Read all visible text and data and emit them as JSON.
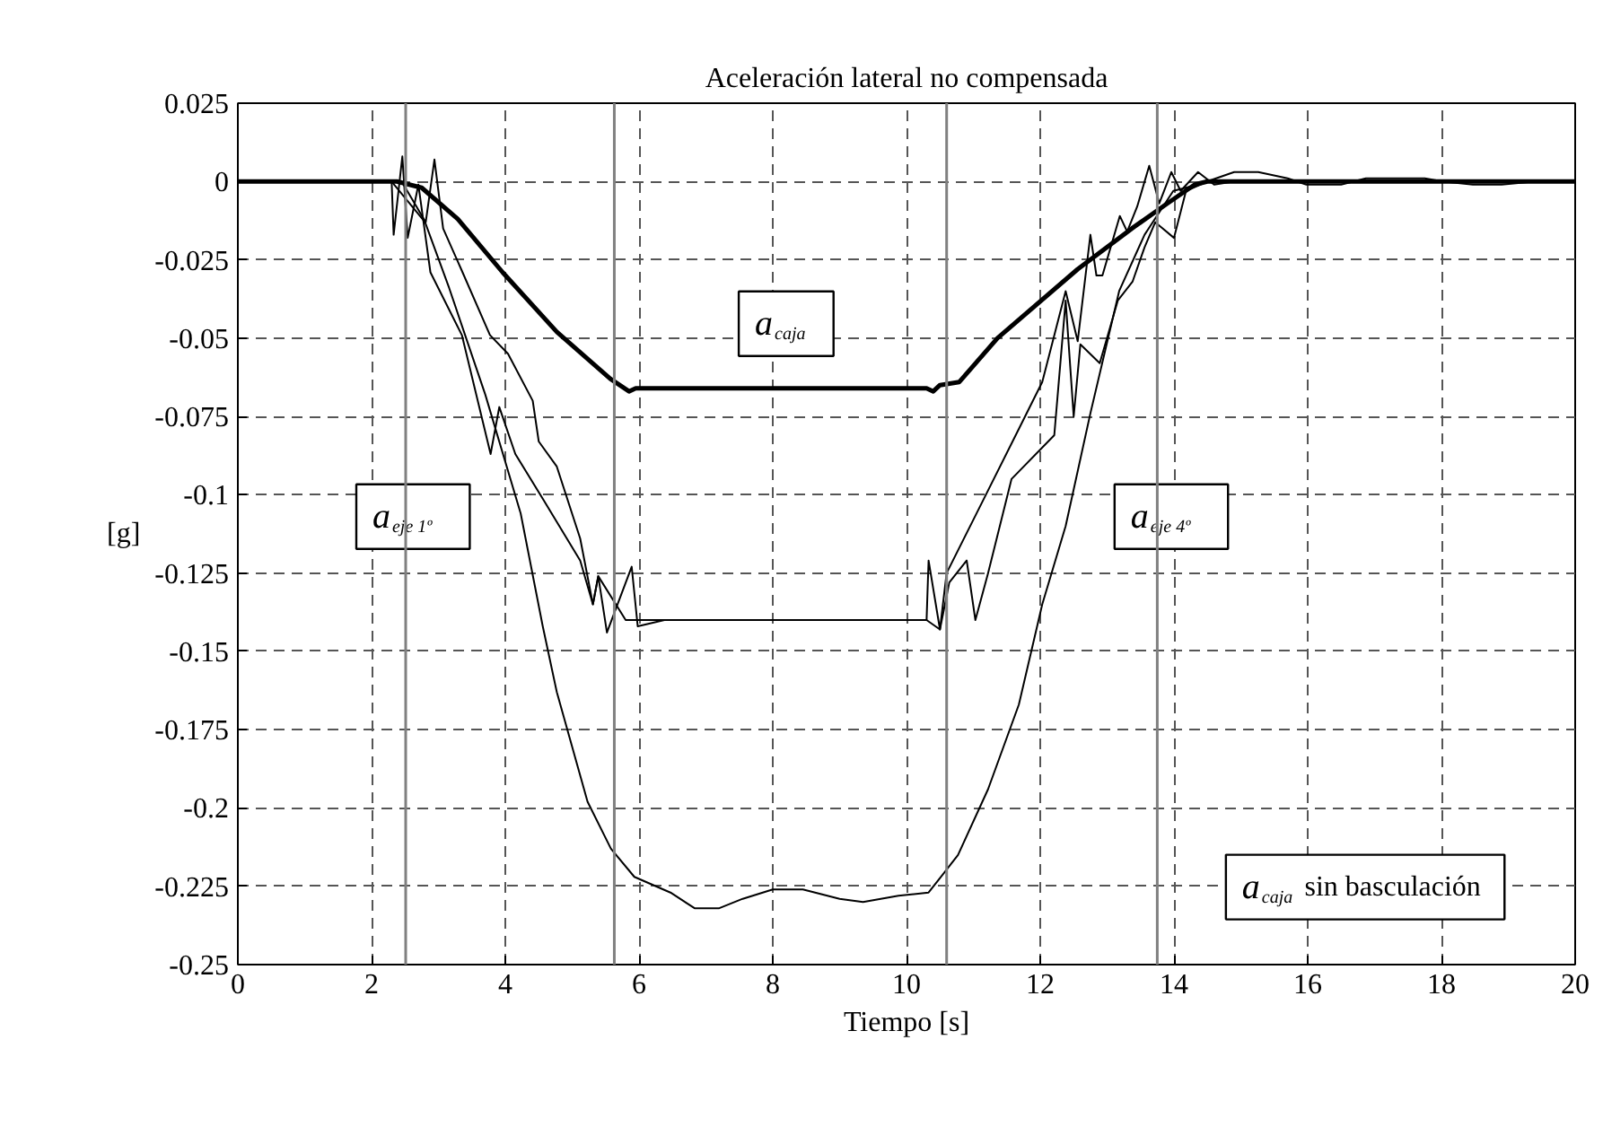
{
  "chart_data": {
    "type": "line",
    "title": "Aceleración lateral no compensada",
    "xlabel": "Tiempo [s]",
    "ylabel": "[g]",
    "xlim": [
      0,
      20
    ],
    "xticks": [
      0,
      2,
      4,
      6,
      8,
      10,
      12,
      14,
      16,
      18,
      20
    ],
    "ylim": [
      -0.25,
      0.025
    ],
    "yticks": [
      {
        "value": 0.025,
        "label": "0.025"
      },
      0,
      {
        "value": -0.025,
        "label": "-0.025"
      },
      {
        "value": -0.05,
        "label": "-0.05"
      },
      {
        "value": -0.075,
        "label": "-0.075"
      },
      {
        "value": -0.1,
        "label": "-0.1"
      },
      {
        "value": -0.125,
        "label": "-0.125"
      },
      {
        "value": -0.15,
        "label": "-0.15"
      },
      {
        "value": -0.175,
        "label": "-0.175"
      },
      {
        "value": -0.2,
        "label": "-0.2"
      },
      {
        "value": -0.225,
        "label": "-0.225"
      },
      {
        "value": -0.25,
        "label": "-0.25"
      }
    ],
    "grid": true,
    "legend": false,
    "marker": "none",
    "line_style": "solid",
    "series": [
      {
        "name": "a$_{caja}$",
        "color": "#000000",
        "x": [
          0,
          2.38,
          2.75,
          3.29,
          3.96,
          4.77,
          5.57,
          5.85,
          5.95,
          10.3,
          10.4,
          10.5,
          10.79,
          11.36,
          12.56,
          13.37,
          13.9,
          14.31,
          14.5,
          20
        ],
        "values": [
          0,
          0,
          -0.002,
          -0.012,
          -0.029,
          -0.048,
          -0.063,
          -0.067,
          -0.066,
          -0.066,
          -0.067,
          -0.065,
          -0.064,
          -0.05,
          -0.028,
          -0.015,
          -0.007,
          -0.001,
          0,
          0
        ]
      },
      {
        "name": "a$_{eje 1º}$",
        "color": "#000000",
        "x": [
          0,
          2.3,
          2.33,
          2.46,
          2.54,
          2.7,
          2.88,
          3.35,
          3.78,
          3.91,
          4.15,
          4.58,
          5.12,
          5.31,
          5.39,
          5.8,
          10.3,
          10.5,
          10.6,
          11.14,
          11.68,
          12.03,
          12.38,
          12.56,
          12.75,
          12.84,
          12.93,
          13.19,
          13.3,
          13.45,
          13.63,
          13.78,
          13.96,
          14.1,
          14.36,
          14.6,
          14.9,
          20
        ],
        "values": [
          0,
          0,
          -0.017,
          0.008,
          -0.018,
          -0.001,
          -0.029,
          -0.049,
          -0.087,
          -0.072,
          -0.087,
          -0.102,
          -0.121,
          -0.135,
          -0.126,
          -0.14,
          -0.14,
          -0.143,
          -0.125,
          -0.102,
          -0.079,
          -0.064,
          -0.035,
          -0.051,
          -0.017,
          -0.03,
          -0.03,
          -0.011,
          -0.016,
          -0.008,
          0.005,
          -0.007,
          0.003,
          -0.003,
          0.003,
          -0.001,
          0,
          0
        ]
      },
      {
        "name": "a$_{eje 4º}$",
        "color": "#000000",
        "x": [
          0,
          2.45,
          2.81,
          2.94,
          3.07,
          3.34,
          3.77,
          4.04,
          4.41,
          4.5,
          4.77,
          5.12,
          5.31,
          5.39,
          5.52,
          5.89,
          5.98,
          6.38,
          10.3,
          10.33,
          10.5,
          10.64,
          10.9,
          11.03,
          11.22,
          11.57,
          12.21,
          12.38,
          12.5,
          12.6,
          12.89,
          13.16,
          13.38,
          13.56,
          13.72,
          14.0,
          14.18,
          14.5,
          20
        ],
        "values": [
          0,
          0,
          -0.013,
          0.007,
          -0.015,
          -0.028,
          -0.049,
          -0.055,
          -0.07,
          -0.083,
          -0.091,
          -0.114,
          -0.135,
          -0.126,
          -0.144,
          -0.123,
          -0.142,
          -0.14,
          -0.14,
          -0.121,
          -0.143,
          -0.128,
          -0.121,
          -0.14,
          -0.125,
          -0.095,
          -0.081,
          -0.038,
          -0.075,
          -0.052,
          -0.058,
          -0.038,
          -0.032,
          -0.021,
          -0.013,
          -0.018,
          -0.003,
          0,
          0
        ]
      },
      {
        "name": "a$_{caja}$ sin basculación",
        "color": "#000000",
        "x": [
          0,
          2.3,
          2.8,
          3.16,
          3.7,
          4.23,
          4.56,
          4.77,
          5.23,
          5.58,
          5.93,
          6.47,
          6.83,
          7.2,
          7.55,
          8.0,
          8.45,
          9.0,
          9.35,
          9.88,
          10.33,
          10.55,
          10.77,
          11.22,
          11.68,
          12.03,
          12.38,
          12.75,
          13.18,
          13.56,
          13.99,
          14.36,
          14.9,
          15.26,
          15.7,
          15.98,
          16.5,
          16.87,
          17.2,
          17.75,
          18.02,
          18.47,
          18.9,
          19.4,
          20
        ],
        "values": [
          0,
          0,
          -0.013,
          -0.034,
          -0.068,
          -0.106,
          -0.142,
          -0.163,
          -0.198,
          -0.213,
          -0.222,
          -0.227,
          -0.232,
          -0.232,
          -0.229,
          -0.226,
          -0.226,
          -0.229,
          -0.23,
          -0.228,
          -0.227,
          -0.221,
          -0.215,
          -0.194,
          -0.167,
          -0.135,
          -0.11,
          -0.074,
          -0.035,
          -0.017,
          -0.003,
          -0.001,
          0.003,
          0.003,
          0.001,
          -0.001,
          -0.001,
          0.001,
          0.001,
          0.001,
          0,
          -0.001,
          -0.001,
          0,
          0
        ]
      }
    ],
    "ref_lines": [
      {
        "axis": "x",
        "value": 2.51,
        "color": "#808080"
      },
      {
        "axis": "x",
        "value": 5.63,
        "color": "#808080"
      },
      {
        "axis": "x",
        "value": 10.6,
        "color": "#808080"
      },
      {
        "axis": "x",
        "value": 13.75,
        "color": "#808080"
      }
    ]
  }
}
